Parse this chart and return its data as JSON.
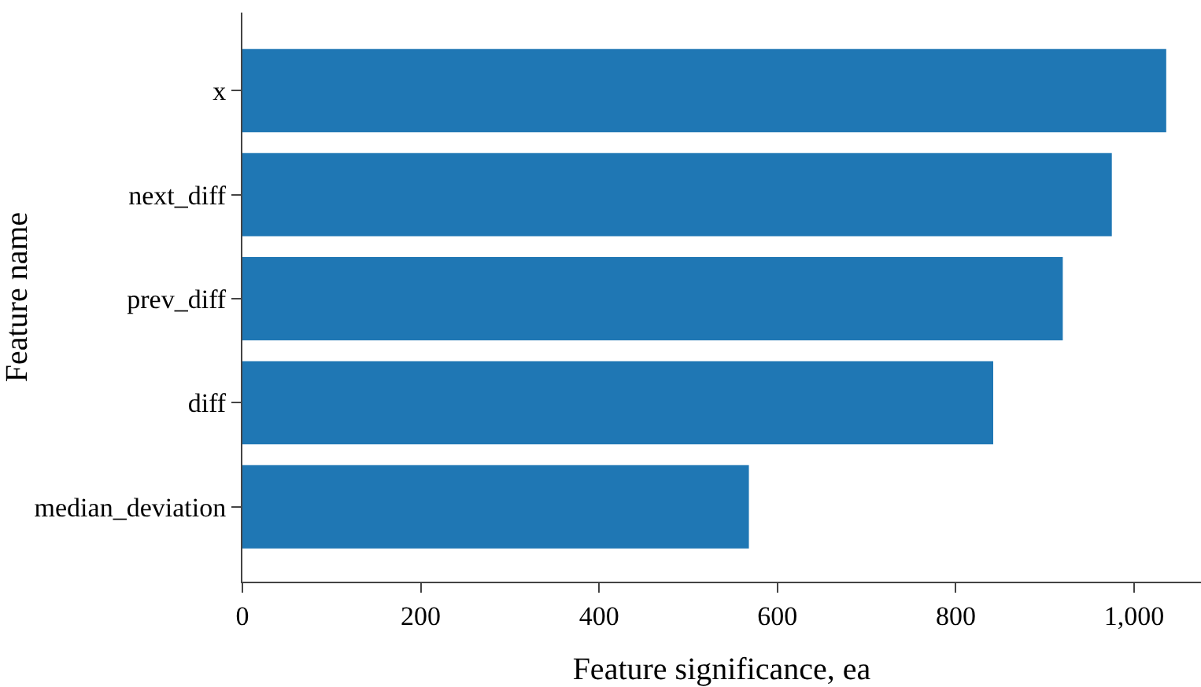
{
  "chart_data": {
    "type": "bar",
    "orientation": "horizontal",
    "xlabel": "Feature significance, ea",
    "ylabel": "Feature name",
    "categories": [
      "x",
      "next_diff",
      "prev_diff",
      "diff",
      "median_deviation"
    ],
    "values": [
      1036,
      975,
      920,
      842,
      568
    ],
    "color": "#1f77b4",
    "xlim": [
      0,
      1075
    ],
    "xticks": [
      0,
      200,
      400,
      600,
      800,
      {
        "value": 1000,
        "label": "1,000"
      }
    ]
  }
}
